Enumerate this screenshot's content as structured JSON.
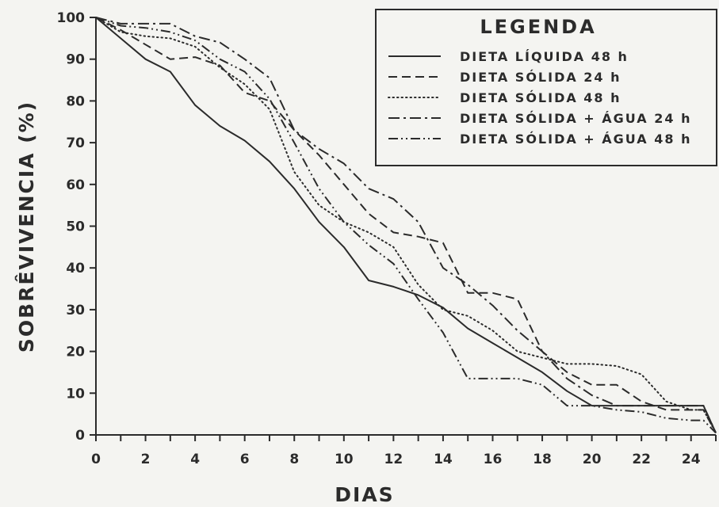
{
  "chart_data": {
    "type": "line",
    "xlabel": "DIAS",
    "ylabel": "SOBRÊVIVENCIA (%)",
    "xlim": [
      0,
      25
    ],
    "ylim": [
      0,
      100
    ],
    "x_ticks": [
      0,
      2,
      4,
      6,
      8,
      10,
      12,
      14,
      16,
      18,
      20,
      22,
      24
    ],
    "y_ticks": [
      0,
      10,
      20,
      30,
      40,
      50,
      60,
      70,
      80,
      90,
      100
    ],
    "grid": false,
    "legend": {
      "title": "LEGENDA",
      "position": "top-right"
    },
    "series": [
      {
        "name": "DIETA LÍQUIDA 48 h",
        "dash": "solid",
        "x": [
          0,
          1,
          2,
          3,
          4,
          5,
          6,
          7,
          8,
          9,
          10,
          11,
          12,
          13,
          14,
          15,
          16,
          17,
          18,
          19,
          20,
          21,
          22,
          23,
          24,
          24.5,
          25
        ],
        "y": [
          100,
          95,
          90,
          87,
          79,
          74,
          70.5,
          65.5,
          59,
          51,
          45,
          37,
          35.5,
          33.5,
          30.5,
          25.5,
          22,
          18.5,
          15,
          10.5,
          7,
          7,
          7,
          7,
          7,
          7,
          0.5
        ]
      },
      {
        "name": "DIETA SÓLIDA 24 h",
        "dash": "dashed",
        "x": [
          0,
          1,
          2,
          3,
          4,
          5,
          6,
          7,
          8,
          9,
          10,
          11,
          12,
          13,
          14,
          15,
          16,
          17,
          18,
          19,
          20,
          21,
          22,
          23,
          24,
          24.5,
          25
        ],
        "y": [
          100,
          97,
          93.5,
          90,
          90.5,
          88.5,
          82,
          80,
          73,
          67,
          60,
          53,
          48.5,
          47.5,
          46,
          34,
          34,
          32.5,
          20,
          15,
          12,
          12,
          8,
          6,
          6,
          6,
          0.5
        ]
      },
      {
        "name": "DIETA SÓLIDA 48 h",
        "dash": "dotted",
        "x": [
          0,
          1,
          2,
          3,
          4,
          5,
          6,
          7,
          8,
          9,
          10,
          11,
          12,
          13,
          14,
          15,
          16,
          17,
          18,
          19,
          20,
          21,
          22,
          23,
          24,
          24.5,
          25
        ],
        "y": [
          100,
          96.5,
          95.5,
          95,
          93,
          88,
          84,
          78,
          63,
          55,
          51,
          48.5,
          45,
          36,
          30,
          28.5,
          25,
          20,
          18.5,
          17,
          17,
          16.5,
          14.5,
          8,
          6,
          6,
          0.5
        ]
      },
      {
        "name": "DIETA SÓLIDA + ÁGUA 24 h",
        "dash": "dashdot",
        "x": [
          0,
          1,
          2,
          3,
          4,
          5,
          6,
          7,
          8,
          9,
          10,
          11,
          12,
          13,
          14,
          15,
          16,
          17,
          18,
          19,
          20,
          21,
          22,
          23,
          24,
          24.5,
          25
        ],
        "y": [
          100,
          98.5,
          98.5,
          98.5,
          95.5,
          94,
          90,
          85.5,
          73,
          68.5,
          65,
          59,
          56.5,
          51,
          40,
          36,
          31,
          25,
          20,
          13.5,
          9.5,
          7,
          7,
          7,
          7,
          7,
          0.5
        ]
      },
      {
        "name": "DIETA SÓLIDA + ÁGUA 48 h",
        "dash": "dashdotdot",
        "x": [
          0,
          1,
          2,
          3,
          4,
          5,
          6,
          7,
          8,
          9,
          10,
          11,
          12,
          13,
          14,
          15,
          16,
          17,
          18,
          19,
          20,
          21,
          22,
          23,
          24,
          24.5,
          25
        ],
        "y": [
          100,
          98,
          97.5,
          96.5,
          94.5,
          90,
          87,
          80.5,
          70,
          59,
          51,
          45.5,
          41,
          32.5,
          24.5,
          13.5,
          13.5,
          13.5,
          12,
          7,
          7,
          6,
          5.5,
          4,
          3.5,
          3.5,
          0.5
        ]
      }
    ]
  }
}
